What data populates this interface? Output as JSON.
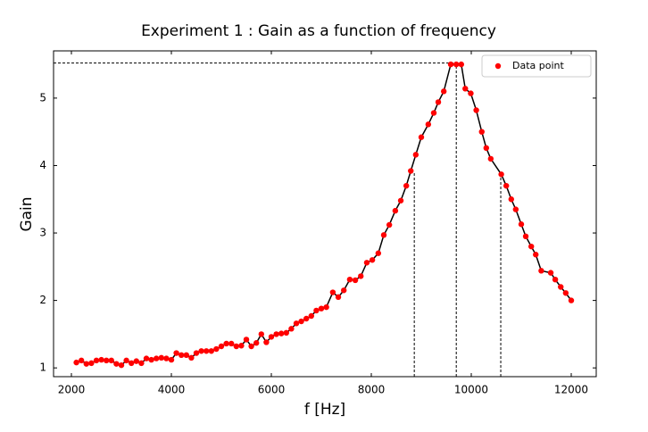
{
  "chart_data": {
    "type": "line",
    "title": "Experiment 1 : Gain as a function of frequency",
    "x_label": "f [Hz]",
    "y_label": "Gain",
    "x": [
      2100,
      2200,
      2300,
      2400,
      2500,
      2600,
      2700,
      2800,
      2900,
      3000,
      3100,
      3200,
      3300,
      3400,
      3500,
      3600,
      3700,
      3800,
      3900,
      4000,
      4100,
      4200,
      4300,
      4400,
      4500,
      4600,
      4700,
      4800,
      4900,
      5000,
      5100,
      5200,
      5300,
      5400,
      5500,
      5600,
      5700,
      5800,
      5900,
      6000,
      6100,
      6200,
      6300,
      6400,
      6500,
      6600,
      6700,
      6800,
      6900,
      7000,
      7100,
      7230,
      7340,
      7450,
      7570,
      7680,
      7790,
      7910,
      8020,
      8140,
      8250,
      8360,
      8480,
      8590,
      8700,
      8790,
      8890,
      9000,
      9140,
      9250,
      9340,
      9450,
      9590,
      9700,
      9800,
      9880,
      9990,
      10100,
      10210,
      10300,
      10390,
      10600,
      10700,
      10800,
      10890,
      11000,
      11090,
      11200,
      11290,
      11400,
      11590,
      11680,
      11790,
      11890,
      12000
    ],
    "series": [
      {
        "name": "Data point",
        "color": "#ff0000",
        "line_color": "#000000",
        "values": [
          1.08,
          1.11,
          1.06,
          1.07,
          1.11,
          1.12,
          1.11,
          1.11,
          1.06,
          1.04,
          1.11,
          1.07,
          1.1,
          1.07,
          1.14,
          1.12,
          1.14,
          1.15,
          1.14,
          1.12,
          1.22,
          1.19,
          1.19,
          1.15,
          1.22,
          1.25,
          1.25,
          1.25,
          1.28,
          1.32,
          1.36,
          1.36,
          1.32,
          1.33,
          1.42,
          1.32,
          1.37,
          1.5,
          1.38,
          1.46,
          1.5,
          1.51,
          1.52,
          1.58,
          1.66,
          1.69,
          1.73,
          1.77,
          1.85,
          1.88,
          1.9,
          2.12,
          2.05,
          2.15,
          2.31,
          2.3,
          2.36,
          2.56,
          2.6,
          2.7,
          2.97,
          3.12,
          3.33,
          3.48,
          3.7,
          3.92,
          4.16,
          4.42,
          4.61,
          4.78,
          4.94,
          5.1,
          5.5,
          5.5,
          5.5,
          5.14,
          5.07,
          4.82,
          4.5,
          4.26,
          4.1,
          3.87,
          3.7,
          3.5,
          3.35,
          3.13,
          2.95,
          2.8,
          2.68,
          2.44,
          2.41,
          2.31,
          2.2,
          2.11,
          2.0
        ]
      }
    ],
    "reference_lines": {
      "vertical": [
        {
          "x": 8860,
          "y": 3.9
        },
        {
          "x": 9700,
          "y": 5.52
        },
        {
          "x": 10590,
          "y": 3.9
        }
      ],
      "horizontal": {
        "y": 5.52,
        "x": 9700
      }
    },
    "xlim": [
      1643,
      12500
    ],
    "ylim": [
      0.87,
      5.7
    ],
    "xticks": [
      2000,
      4000,
      6000,
      8000,
      10000,
      12000
    ],
    "yticks": [
      1,
      2,
      3,
      4,
      5
    ],
    "legend": "upper right"
  }
}
